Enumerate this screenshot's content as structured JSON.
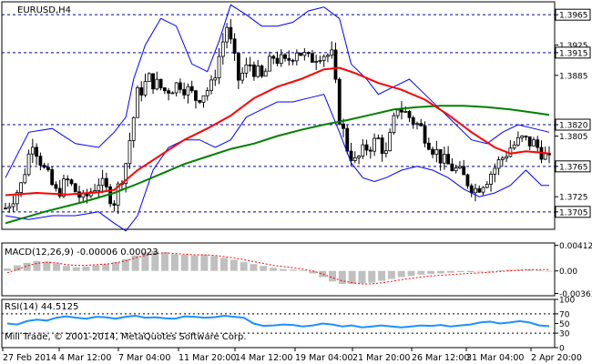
{
  "main_title": "EURUSD,H4",
  "macd_title": "MACD(12,26,9) -0.00006 0.00023",
  "rsi_title": "RSI(14) 44.5125",
  "copyright": "Mill Trade, © 2001-2014, MetaQuotes Software Corp.",
  "colors": {
    "candle": "#000000",
    "upper_band": "#0000ff",
    "ma_fast": "#ff0000",
    "ma_slow": "#008000",
    "hline": "#0000a0",
    "macd_hist": "#c0c0c0",
    "macd_signal": "#ff0000",
    "rsi": "#1e90ff",
    "rsi_level": "#000000"
  },
  "chart_data": [
    {
      "type": "candlestick",
      "symbol": "EURUSD",
      "timeframe": "H4",
      "ylim": [
        1.3682,
        1.3982
      ],
      "y_ticks": [
        "1.3965",
        "1.3925",
        "1.3915",
        "1.3885",
        "1.3820",
        "1.3805",
        "1.3765",
        "1.3725",
        "1.3705"
      ],
      "highlighted_levels": [
        "1.3965",
        "1.3915",
        "1.3820",
        "1.3765",
        "1.3705"
      ],
      "x_tick_labels": [
        "27 Feb 2014",
        "4 Mar 12:00",
        "7 Mar 04:00",
        "11 Mar 20:00",
        "14 Mar 12:00",
        "19 Mar 04:00",
        "21 Mar 20:00",
        "26 Mar 12:00",
        "31 Mar 04:00",
        "2 Apr 20:00"
      ],
      "close_path": [
        [
          0,
          1.371
        ],
        [
          4,
          1.374
        ],
        [
          7,
          1.38
        ],
        [
          10,
          1.376
        ],
        [
          13,
          1.373
        ],
        [
          16,
          1.3745
        ],
        [
          20,
          1.372
        ],
        [
          24,
          1.3745
        ],
        [
          28,
          1.372
        ],
        [
          31,
          1.377
        ],
        [
          34,
          1.386
        ],
        [
          37,
          1.388
        ],
        [
          41,
          1.3865
        ],
        [
          45,
          1.3875
        ],
        [
          49,
          1.3855
        ],
        [
          53,
          1.387
        ],
        [
          57,
          1.395
        ],
        [
          60,
          1.388
        ],
        [
          63,
          1.39
        ],
        [
          66,
          1.388
        ],
        [
          69,
          1.391
        ],
        [
          72,
          1.39
        ],
        [
          75,
          1.392
        ],
        [
          78,
          1.3905
        ],
        [
          81,
          1.3915
        ],
        [
          84,
          1.391
        ],
        [
          86,
          1.383
        ],
        [
          88,
          1.379
        ],
        [
          90,
          1.377
        ],
        [
          93,
          1.379
        ],
        [
          96,
          1.38
        ],
        [
          98,
          1.378
        ],
        [
          101,
          1.3845
        ],
        [
          104,
          1.383
        ],
        [
          107,
          1.3815
        ],
        [
          110,
          1.379
        ],
        [
          113,
          1.377
        ],
        [
          116,
          1.376
        ],
        [
          119,
          1.3745
        ],
        [
          121,
          1.3735
        ],
        [
          124,
          1.375
        ],
        [
          127,
          1.377
        ],
        [
          130,
          1.379
        ],
        [
          133,
          1.38
        ],
        [
          136,
          1.3795
        ],
        [
          138,
          1.3785
        ],
        [
          140,
          1.377
        ]
      ],
      "upper_band": [
        [
          0,
          1.375
        ],
        [
          6,
          1.381
        ],
        [
          12,
          1.3815
        ],
        [
          18,
          1.3795
        ],
        [
          24,
          1.379
        ],
        [
          28,
          1.381
        ],
        [
          31,
          1.383
        ],
        [
          33,
          1.388
        ],
        [
          36,
          1.3925
        ],
        [
          40,
          1.396
        ],
        [
          44,
          1.395
        ],
        [
          48,
          1.39
        ],
        [
          52,
          1.389
        ],
        [
          55,
          1.393
        ],
        [
          58,
          1.3978
        ],
        [
          62,
          1.3965
        ],
        [
          66,
          1.395
        ],
        [
          70,
          1.395
        ],
        [
          74,
          1.3955
        ],
        [
          78,
          1.397
        ],
        [
          82,
          1.3975
        ],
        [
          86,
          1.396
        ],
        [
          89,
          1.39
        ],
        [
          93,
          1.388
        ],
        [
          96,
          1.386
        ],
        [
          100,
          1.387
        ],
        [
          104,
          1.388
        ],
        [
          108,
          1.386
        ],
        [
          112,
          1.384
        ],
        [
          116,
          1.382
        ],
        [
          120,
          1.38
        ],
        [
          124,
          1.3795
        ],
        [
          128,
          1.381
        ],
        [
          132,
          1.382
        ],
        [
          136,
          1.3815
        ],
        [
          140,
          1.381
        ]
      ],
      "lower_band": [
        [
          0,
          1.37
        ],
        [
          6,
          1.3695
        ],
        [
          12,
          1.37
        ],
        [
          18,
          1.37
        ],
        [
          24,
          1.3705
        ],
        [
          28,
          1.369
        ],
        [
          31,
          1.368
        ],
        [
          34,
          1.37
        ],
        [
          38,
          1.376
        ],
        [
          42,
          1.379
        ],
        [
          46,
          1.38
        ],
        [
          50,
          1.38
        ],
        [
          54,
          1.379
        ],
        [
          58,
          1.38
        ],
        [
          62,
          1.383
        ],
        [
          66,
          1.384
        ],
        [
          70,
          1.385
        ],
        [
          74,
          1.385
        ],
        [
          78,
          1.3855
        ],
        [
          82,
          1.386
        ],
        [
          86,
          1.381
        ],
        [
          89,
          1.377
        ],
        [
          92,
          1.375
        ],
        [
          95,
          1.3745
        ],
        [
          98,
          1.375
        ],
        [
          102,
          1.376
        ],
        [
          106,
          1.3765
        ],
        [
          110,
          1.376
        ],
        [
          114,
          1.375
        ],
        [
          118,
          1.3735
        ],
        [
          122,
          1.3725
        ],
        [
          126,
          1.373
        ],
        [
          130,
          1.374
        ],
        [
          134,
          1.376
        ],
        [
          138,
          1.374
        ],
        [
          140,
          1.374
        ]
      ],
      "ma_fast": [
        [
          0,
          1.3727
        ],
        [
          8,
          1.373
        ],
        [
          16,
          1.3728
        ],
        [
          24,
          1.3731
        ],
        [
          28,
          1.3734
        ],
        [
          34,
          1.376
        ],
        [
          40,
          1.378
        ],
        [
          46,
          1.38
        ],
        [
          52,
          1.3815
        ],
        [
          58,
          1.3832
        ],
        [
          64,
          1.3855
        ],
        [
          70,
          1.387
        ],
        [
          76,
          1.388
        ],
        [
          82,
          1.3893
        ],
        [
          86,
          1.3895
        ],
        [
          90,
          1.3888
        ],
        [
          96,
          1.3875
        ],
        [
          102,
          1.3866
        ],
        [
          108,
          1.3853
        ],
        [
          114,
          1.3833
        ],
        [
          120,
          1.381
        ],
        [
          126,
          1.379
        ],
        [
          130,
          1.3782
        ],
        [
          134,
          1.3785
        ],
        [
          138,
          1.3783
        ],
        [
          140,
          1.3782
        ]
      ],
      "ma_slow": [
        [
          0,
          1.369
        ],
        [
          10,
          1.3705
        ],
        [
          20,
          1.3718
        ],
        [
          28,
          1.373
        ],
        [
          34,
          1.3742
        ],
        [
          40,
          1.3755
        ],
        [
          46,
          1.3768
        ],
        [
          52,
          1.3778
        ],
        [
          58,
          1.3788
        ],
        [
          64,
          1.3795
        ],
        [
          70,
          1.3805
        ],
        [
          76,
          1.3813
        ],
        [
          82,
          1.382
        ],
        [
          88,
          1.3826
        ],
        [
          94,
          1.3833
        ],
        [
          100,
          1.384
        ],
        [
          106,
          1.3843
        ],
        [
          112,
          1.3845
        ],
        [
          118,
          1.3845
        ],
        [
          124,
          1.3843
        ],
        [
          130,
          1.384
        ],
        [
          136,
          1.3836
        ],
        [
          140,
          1.3833
        ]
      ]
    },
    {
      "type": "histogram+line",
      "name": "MACD(12,26,9)",
      "ylim": [
        -0.004,
        0.0045
      ],
      "y_ticks": [
        "0.00412",
        "0.00",
        "-0.00363"
      ],
      "histogram": [
        0.0004,
        0.0009,
        0.0013,
        0.0016,
        0.0015,
        0.0012,
        0.0008,
        0.0006,
        0.0007,
        0.0009,
        0.0011,
        0.0014,
        0.0019,
        0.0025,
        0.003,
        0.0032,
        0.003,
        0.0027,
        0.0026,
        0.0025,
        0.0026,
        0.0024,
        0.0021,
        0.0018,
        0.0014,
        0.0011,
        0.0008,
        0.0005,
        0.0003,
        0.0002,
        0.0001,
        -0.0004,
        -0.001,
        -0.0017,
        -0.0021,
        -0.0021,
        -0.002,
        -0.0019,
        -0.0016,
        -0.0013,
        -0.001,
        -0.0008,
        -0.0006,
        -0.0005,
        -0.0004,
        -0.0003,
        -0.0002,
        -0.0002,
        -0.0001,
        0.0,
        0.0001,
        0.0002,
        0.0002,
        0.0002,
        0.0001,
        0.0
      ],
      "signal": [
        -0.0003,
        0.0002,
        0.0008,
        0.0012,
        0.0014,
        0.0013,
        0.001,
        0.0009,
        0.0009,
        0.001,
        0.0011,
        0.0013,
        0.0016,
        0.0021,
        0.0025,
        0.0028,
        0.0029,
        0.0028,
        0.0027,
        0.0026,
        0.0026,
        0.0025,
        0.0023,
        0.0021,
        0.0018,
        0.0015,
        0.0012,
        0.0009,
        0.0007,
        0.0005,
        0.0003,
        0.0,
        -0.0005,
        -0.0011,
        -0.0016,
        -0.0019,
        -0.0021,
        -0.0021,
        -0.0019,
        -0.0017,
        -0.0014,
        -0.0012,
        -0.001,
        -0.0008,
        -0.0007,
        -0.0006,
        -0.0005,
        -0.0004,
        -0.0003,
        -0.0002,
        -0.0001,
        0.0,
        0.0001,
        0.0002,
        0.0002,
        0.0002
      ]
    },
    {
      "type": "line",
      "name": "RSI(14)",
      "ylim": [
        0,
        100
      ],
      "y_ticks": [
        "100",
        "70",
        "50",
        "30",
        "0"
      ],
      "levels": [
        70,
        30
      ],
      "values": [
        50,
        48,
        55,
        58,
        56,
        62,
        65,
        62,
        60,
        64,
        63,
        60,
        64,
        66,
        62,
        63,
        61,
        60,
        65,
        64,
        62,
        63,
        66,
        64,
        62,
        50,
        45,
        46,
        48,
        47,
        44,
        46,
        50,
        48,
        44,
        46,
        42,
        44,
        46,
        44,
        42,
        44,
        46,
        45,
        47,
        44,
        46,
        48,
        52,
        54,
        50,
        52,
        55,
        52,
        46,
        44.5
      ]
    }
  ]
}
